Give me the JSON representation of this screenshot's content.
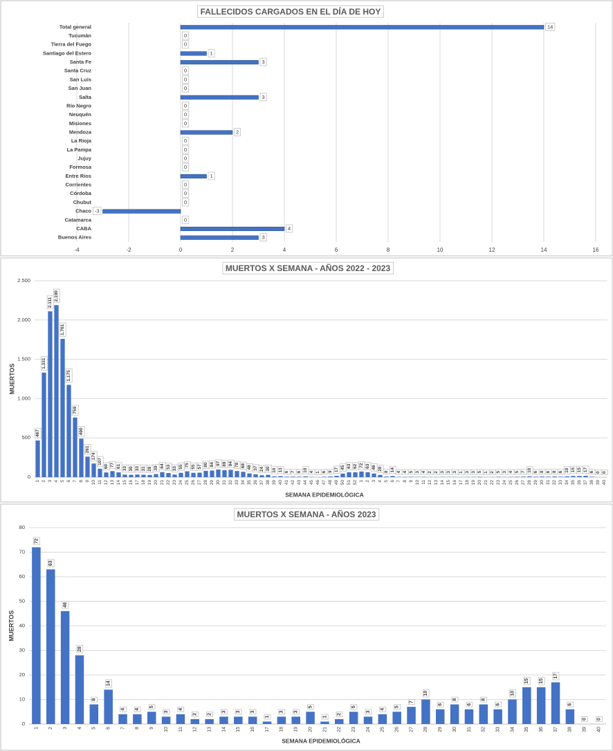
{
  "chart_data": [
    {
      "type": "bar",
      "orientation": "horizontal",
      "title": "FALLECIDOS CARGADOS EN EL DÍA DE HOY",
      "categories": [
        "Total general",
        "Tucumán",
        "Tierra del Fuego",
        "Santiago del Estero",
        "Santa Fe",
        "Santa Cruz",
        "San Luis",
        "San Juan",
        "Salta",
        "Río Negro",
        "Neuquén",
        "Misiones",
        "Mendoza",
        "La Rioja",
        "La Pampa",
        "Jujuy",
        "Formosa",
        "Entre Ríos",
        "Corrientes",
        "Córdoba",
        "Chubut",
        "Chaco",
        "Catamarca",
        "CABA",
        "Buenos Aires"
      ],
      "values": [
        14,
        0,
        0,
        1,
        3,
        0,
        0,
        0,
        3,
        0,
        0,
        0,
        2,
        0,
        0,
        0,
        0,
        1,
        0,
        0,
        0,
        -3,
        0,
        4,
        3
      ],
      "color": "#4472c4",
      "xlim": [
        -4,
        16
      ],
      "xticks": [
        -4,
        -2,
        0,
        2,
        4,
        6,
        8,
        10,
        12,
        14,
        16
      ],
      "grid": true
    },
    {
      "type": "bar",
      "title": "MUERTOS X SEMANA - AÑOS 2022 - 2023",
      "x_label": "SEMANA EPIDEMIOLÓGICA",
      "y_label": "MUERTOS",
      "categories": [
        "1",
        "2",
        "3",
        "4",
        "5",
        "6",
        "7",
        "8",
        "9",
        "10",
        "11",
        "12",
        "13",
        "14",
        "15",
        "16",
        "17",
        "18",
        "19",
        "20",
        "21",
        "22",
        "23",
        "24",
        "25",
        "26",
        "27",
        "28",
        "29",
        "30",
        "31",
        "32",
        "33",
        "34",
        "35",
        "36",
        "37",
        "38",
        "39",
        "40",
        "41",
        "42",
        "43",
        "44",
        "45",
        "46",
        "47",
        "48",
        "49",
        "50",
        "51",
        "52",
        "1",
        "2",
        "3",
        "4",
        "5",
        "6",
        "7",
        "8",
        "9",
        "10",
        "11",
        "12",
        "13",
        "14",
        "15",
        "16",
        "17",
        "18",
        "19",
        "20",
        "21",
        "22",
        "23",
        "24",
        "25",
        "26",
        "27",
        "28",
        "29",
        "30",
        "31",
        "32",
        "33",
        "34",
        "35",
        "36",
        "37",
        "38",
        "39",
        "40"
      ],
      "values": [
        467,
        1331,
        2111,
        2190,
        1761,
        1175,
        759,
        490,
        261,
        174,
        107,
        60,
        77,
        61,
        33,
        30,
        33,
        31,
        28,
        39,
        64,
        53,
        33,
        55,
        75,
        55,
        57,
        80,
        84,
        97,
        89,
        94,
        78,
        68,
        48,
        37,
        24,
        30,
        10,
        13,
        6,
        7,
        6,
        10,
        4,
        1,
        6,
        9,
        17,
        45,
        63,
        62,
        72,
        63,
        46,
        28,
        8,
        14,
        4,
        4,
        5,
        3,
        4,
        2,
        2,
        3,
        3,
        3,
        1,
        3,
        3,
        5,
        1,
        2,
        5,
        3,
        4,
        5,
        7,
        10,
        6,
        8,
        6,
        8,
        6,
        10,
        15,
        15,
        17,
        6,
        0,
        0
      ],
      "value_labels": [
        "467",
        "1.331",
        "2.111",
        "2.190",
        "1.761",
        "1.175",
        "759",
        "490",
        "261",
        "174",
        "107",
        "60",
        "77",
        "61",
        "33",
        "30",
        "33",
        "31",
        "28",
        "39",
        "64",
        "53",
        "33",
        "55",
        "75",
        "55",
        "57",
        "80",
        "84",
        "97",
        "89",
        "94",
        "78",
        "68",
        "48",
        "37",
        "24",
        "30",
        "10",
        "13",
        "6",
        "7",
        "6",
        "10",
        "4",
        "1",
        "6",
        "9",
        "17",
        "45",
        "63",
        "62",
        "72",
        "63",
        "46",
        "28",
        "8",
        "14",
        "4",
        "4",
        "5",
        "3",
        "4",
        "2",
        "2",
        "3",
        "3",
        "3",
        "1",
        "3",
        "3",
        "5",
        "1",
        "2",
        "5",
        "3",
        "4",
        "5",
        "7",
        "10",
        "6",
        "8",
        "6",
        "8",
        "6",
        "10",
        "15",
        "15",
        "17",
        "6",
        "0",
        "0"
      ],
      "color": "#4472c4",
      "ylim": [
        0,
        2500
      ],
      "yticks": [
        0,
        {
          "value": 500,
          "label": "500"
        },
        {
          "value": 1000,
          "label": "1.000"
        },
        {
          "value": 1500,
          "label": "1.500"
        },
        {
          "value": 2000,
          "label": "2.000"
        },
        {
          "value": 2500,
          "label": "2.500"
        }
      ],
      "grid": true
    },
    {
      "type": "bar",
      "title": "MUERTOS X SEMANA - AÑOS 2023",
      "x_label": "SEMANA EPIDEMIOLÓGICA",
      "y_label": "MUERTOS",
      "categories": [
        "1",
        "2",
        "3",
        "4",
        "5",
        "6",
        "7",
        "8",
        "9",
        "10",
        "11",
        "12",
        "13",
        "14",
        "15",
        "16",
        "17",
        "18",
        "19",
        "20",
        "21",
        "22",
        "23",
        "24",
        "25",
        "26",
        "27",
        "28",
        "29",
        "30",
        "31",
        "32",
        "33",
        "34",
        "35",
        "36",
        "37",
        "38",
        "39",
        "40"
      ],
      "values": [
        72,
        63,
        46,
        28,
        8,
        14,
        4,
        4,
        5,
        3,
        4,
        2,
        2,
        3,
        3,
        3,
        1,
        3,
        3,
        5,
        1,
        2,
        5,
        3,
        4,
        5,
        7,
        10,
        6,
        8,
        6,
        8,
        6,
        10,
        15,
        15,
        17,
        6,
        0,
        0
      ],
      "color": "#4472c4",
      "ylim": [
        0,
        80
      ],
      "yticks": [
        0,
        10,
        20,
        30,
        40,
        50,
        60,
        70,
        80
      ],
      "grid": true
    }
  ]
}
